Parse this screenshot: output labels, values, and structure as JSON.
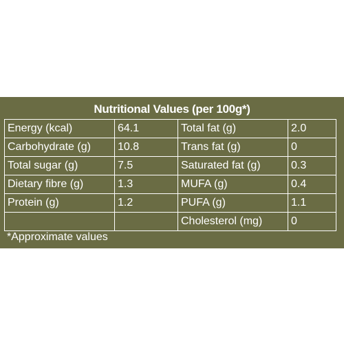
{
  "panel": {
    "title": "Nutritional Values (per 100g*)",
    "footnote": "*Approximate values",
    "background": "#6a6c44",
    "text_color": "#ffffff"
  },
  "rows": [
    {
      "left_name": "Energy (kcal)",
      "left_value": "64.1",
      "right_name": "Total fat (g)",
      "right_value": "2.0"
    },
    {
      "left_name": "Carbohydrate (g)",
      "left_value": "10.8",
      "right_name": "Trans fat (g)",
      "right_value": "0"
    },
    {
      "left_name": "Total sugar (g)",
      "left_value": "7.5",
      "right_name": "Saturated fat (g)",
      "right_value": "0.3"
    },
    {
      "left_name": "Dietary fibre (g)",
      "left_value": "1.3",
      "right_name": "MUFA (g)",
      "right_value": "0.4"
    },
    {
      "left_name": "Protein (g)",
      "left_value": "1.2",
      "right_name": "PUFA (g)",
      "right_value": "1.1"
    },
    {
      "left_name": "",
      "left_value": "",
      "right_name": "Cholesterol (mg)",
      "right_value": "0"
    }
  ]
}
